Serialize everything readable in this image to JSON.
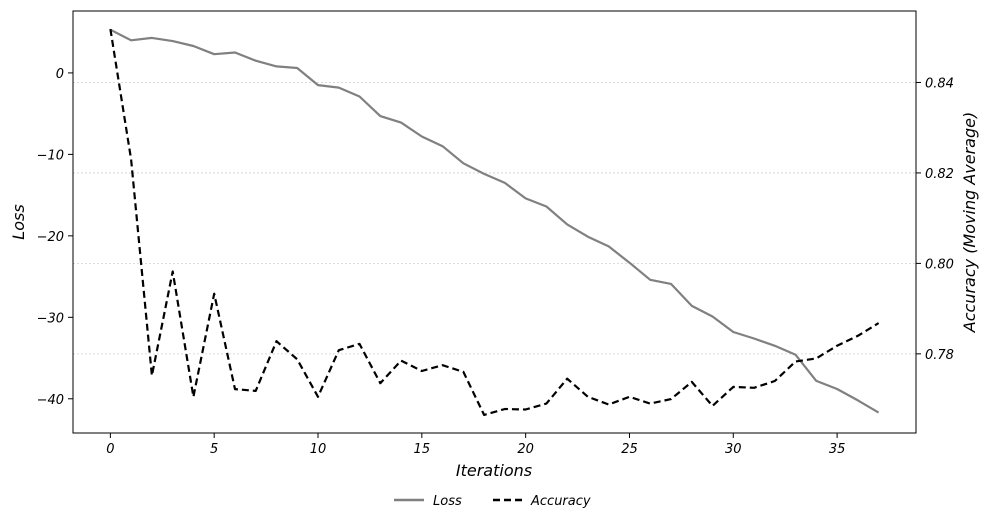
{
  "chart_data": {
    "type": "line",
    "xlabel": "Iterations",
    "ylabel": "Loss",
    "ylabel_right": "Accuracy (Moving Average)",
    "xlim": [
      -1.8,
      38.8
    ],
    "ylim_left": [
      -44.2,
      7.6
    ],
    "ylim_right": [
      0.7625,
      0.8558
    ],
    "x_ticks": [
      0,
      5,
      10,
      15,
      20,
      25,
      30,
      35
    ],
    "y_left_ticks": [
      0,
      -10,
      -20,
      -30,
      -40
    ],
    "y_left_tick_labels": [
      "0",
      "−10",
      "−20",
      "−30",
      "−40"
    ],
    "y_right_ticks": [
      0.84,
      0.82,
      0.8,
      0.78
    ],
    "y_right_tick_labels": [
      "0.84",
      "0.82",
      "0.80",
      "0.78"
    ],
    "grid": "horizontal dotted, right axis",
    "legend_position": "bottom-center",
    "x": [
      0,
      1,
      2,
      3,
      4,
      5,
      6,
      7,
      8,
      9,
      10,
      11,
      12,
      13,
      14,
      15,
      16,
      17,
      18,
      19,
      20,
      21,
      22,
      23,
      24,
      25,
      26,
      27,
      28,
      29,
      30,
      31,
      32,
      33,
      34,
      35,
      36,
      37
    ],
    "series": [
      {
        "name": "Loss",
        "axis": "left",
        "color": "#808080",
        "style": "solid",
        "values": [
          5.3,
          4.0,
          4.3,
          3.9,
          3.3,
          2.3,
          2.5,
          1.5,
          0.8,
          0.6,
          -1.5,
          -1.8,
          -2.9,
          -5.3,
          -6.1,
          -7.8,
          -9.0,
          -11.1,
          -12.4,
          -13.5,
          -15.4,
          -16.4,
          -18.6,
          -20.1,
          -21.3,
          -23.3,
          -25.4,
          -25.9,
          -28.6,
          -29.9,
          -31.8,
          -32.6,
          -33.5,
          -34.6,
          -37.8,
          -38.8,
          -40.2,
          -41.7
        ]
      },
      {
        "name": "Accuracy",
        "axis": "right",
        "color": "#000000",
        "style": "dashed",
        "values": [
          0.8518,
          0.823,
          0.7752,
          0.7982,
          0.7705,
          0.7933,
          0.7722,
          0.7718,
          0.7828,
          0.7788,
          0.7705,
          0.7808,
          0.7822,
          0.7735,
          0.7785,
          0.7762,
          0.7775,
          0.776,
          0.7665,
          0.7678,
          0.7677,
          0.769,
          0.7745,
          0.7705,
          0.7688,
          0.7705,
          0.769,
          0.77,
          0.7738,
          0.7685,
          0.7727,
          0.7725,
          0.774,
          0.7783,
          0.779,
          0.7818,
          0.784,
          0.7868
        ]
      }
    ]
  }
}
